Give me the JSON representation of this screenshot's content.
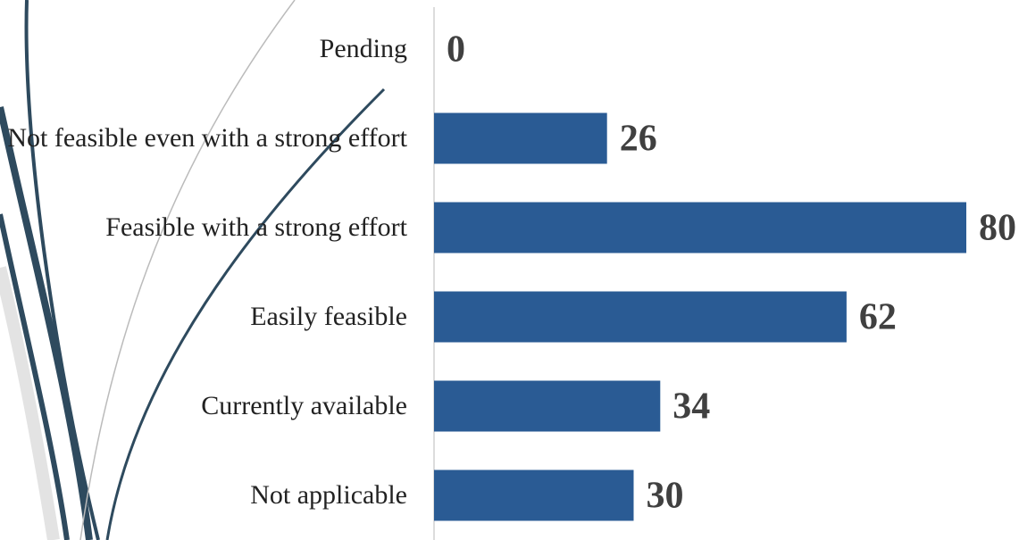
{
  "chart_data": {
    "type": "hbar",
    "categories": [
      "Pending",
      "Not feasible even with a strong effort",
      "Feasible with a strong effort",
      "Easily feasible",
      "Currently available",
      "Not applicable"
    ],
    "values": [
      0,
      26,
      80,
      62,
      34,
      30
    ],
    "color": "#2a5b94",
    "xlim": [
      0,
      80
    ]
  }
}
